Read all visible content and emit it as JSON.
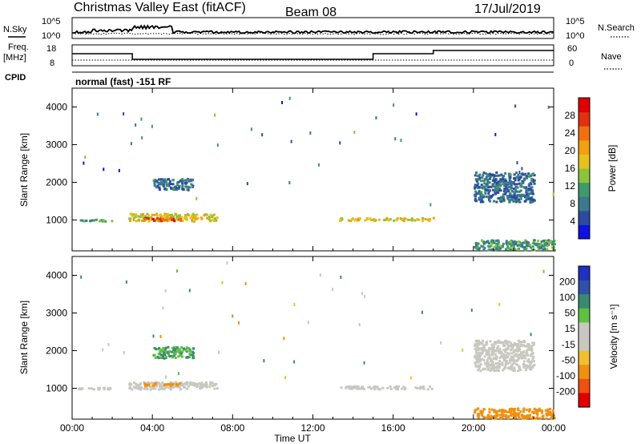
{
  "header": {
    "title": "Christmas Valley East (fitACF)",
    "beam": "Beam 08",
    "date": "17/Jul/2019"
  },
  "sky_panel": {
    "left_label": "N.Sky",
    "right_label": "N.Search",
    "left_ticks": [
      "10^5",
      "10^0"
    ],
    "right_ticks": [
      "10^5",
      "10^0"
    ]
  },
  "freq_panel": {
    "left_label_1": "Freq.",
    "left_label_2": "[MHz]",
    "right_label": "Nave",
    "left_ticks": [
      "18",
      "8"
    ],
    "right_ticks": [
      "60",
      "0"
    ],
    "cpid_label": "CPID",
    "mode_text": "normal (fast) -151 RF"
  },
  "colors": {
    "power_scale": [
      "#1010e0",
      "#2d4aa0",
      "#3a7a8a",
      "#3f9a6a",
      "#8ac43a",
      "#e8c020",
      "#f0a010",
      "#f07010",
      "#e03010",
      "#e00000"
    ],
    "velocity_scale": [
      "#2030c0",
      "#3050a8",
      "#3a8a70",
      "#60c040",
      "#c8c8c0",
      "#c8c8c0",
      "#f0c030",
      "#f09010",
      "#f05010",
      "#e00000"
    ]
  },
  "chart_data": [
    {
      "type": "heatmap",
      "name": "power",
      "title": "Christmas Valley East (fitACF) Beam 08 17/Jul/2019",
      "ylabel": "Slant Range [km]",
      "xlabel": "Time UT",
      "x_ticks": [
        "00:00",
        "04:00",
        "08:00",
        "12:00",
        "16:00",
        "20:00",
        "00:00"
      ],
      "y_ticks": [
        "1000",
        "2000",
        "3000",
        "4000"
      ],
      "ylim": [
        180,
        4500
      ],
      "xlim": [
        0,
        24
      ],
      "colorbar_label": "Power [dB]",
      "colorbar_ticks": [
        "4",
        "8",
        "12",
        "16",
        "20",
        "24",
        "28"
      ],
      "colorbar_range": [
        0,
        32
      ],
      "echo_regions": [
        {
          "t_start": 0.0,
          "t_end": 2.0,
          "range_min": 950,
          "range_max": 1000,
          "power": 10
        },
        {
          "t_start": 2.8,
          "t_end": 7.2,
          "range_min": 950,
          "range_max": 1150,
          "power": 18
        },
        {
          "t_start": 3.5,
          "t_end": 5.5,
          "range_min": 960,
          "range_max": 1040,
          "power": 28
        },
        {
          "t_start": 4.0,
          "t_end": 6.0,
          "range_min": 1780,
          "range_max": 2080,
          "power": 6
        },
        {
          "t_start": 13.3,
          "t_end": 18.0,
          "range_min": 960,
          "range_max": 1040,
          "power": 18
        },
        {
          "t_start": 20.0,
          "t_end": 23.0,
          "range_min": 1450,
          "range_max": 2250,
          "power": 6
        },
        {
          "t_start": 20.0,
          "t_end": 24.0,
          "range_min": 180,
          "range_max": 450,
          "power": 10
        }
      ]
    },
    {
      "type": "heatmap",
      "name": "velocity",
      "ylabel": "Slant Range [km]",
      "xlabel": "Time UT",
      "x_ticks": [
        "00:00",
        "04:00",
        "08:00",
        "12:00",
        "16:00",
        "20:00",
        "00:00"
      ],
      "y_ticks": [
        "1000",
        "2000",
        "3000",
        "4000"
      ],
      "ylim": [
        180,
        4500
      ],
      "xlim": [
        0,
        24
      ],
      "colorbar_label": "Velocity [m s⁻¹]",
      "colorbar_ticks": [
        "200",
        "100",
        "50",
        "15",
        "-15",
        "-50",
        "-100",
        "-200"
      ],
      "echo_regions": [
        {
          "t_start": 0.0,
          "t_end": 2.0,
          "range_min": 950,
          "range_max": 1000,
          "velocity": 0
        },
        {
          "t_start": 2.8,
          "t_end": 7.2,
          "range_min": 950,
          "range_max": 1150,
          "velocity": 0
        },
        {
          "t_start": 3.5,
          "t_end": 5.5,
          "range_min": 1050,
          "range_max": 1120,
          "velocity": -50
        },
        {
          "t_start": 4.0,
          "t_end": 6.0,
          "range_min": 1780,
          "range_max": 2080,
          "velocity": 30
        },
        {
          "t_start": 13.3,
          "t_end": 18.0,
          "range_min": 960,
          "range_max": 1040,
          "velocity": 0
        },
        {
          "t_start": 20.0,
          "t_end": 23.0,
          "range_min": 1450,
          "range_max": 2250,
          "velocity": 0
        },
        {
          "t_start": 20.0,
          "t_end": 24.0,
          "range_min": 180,
          "range_max": 450,
          "velocity": -50
        }
      ]
    }
  ]
}
